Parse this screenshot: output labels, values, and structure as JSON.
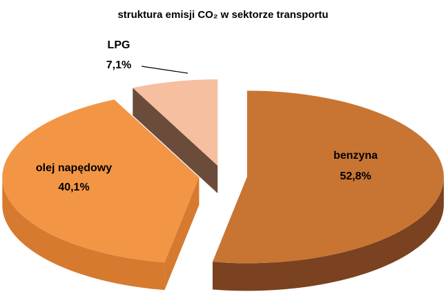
{
  "chart_data": {
    "type": "pie",
    "title": "struktura emisji CO₂ w sektorze transportu",
    "categories": [
      "benzyna",
      "olej napędowy",
      "LPG"
    ],
    "values": [
      52.8,
      40.1,
      7.1
    ],
    "value_labels": [
      "52,8%",
      "40,1%",
      "7,1%"
    ],
    "colors": [
      "#c87533",
      "#f29545",
      "#f5bfa0"
    ],
    "side_colors": [
      "#7a4220",
      "#d67a2f",
      "#6b4c3a"
    ],
    "exploded": true,
    "three_d": true
  }
}
